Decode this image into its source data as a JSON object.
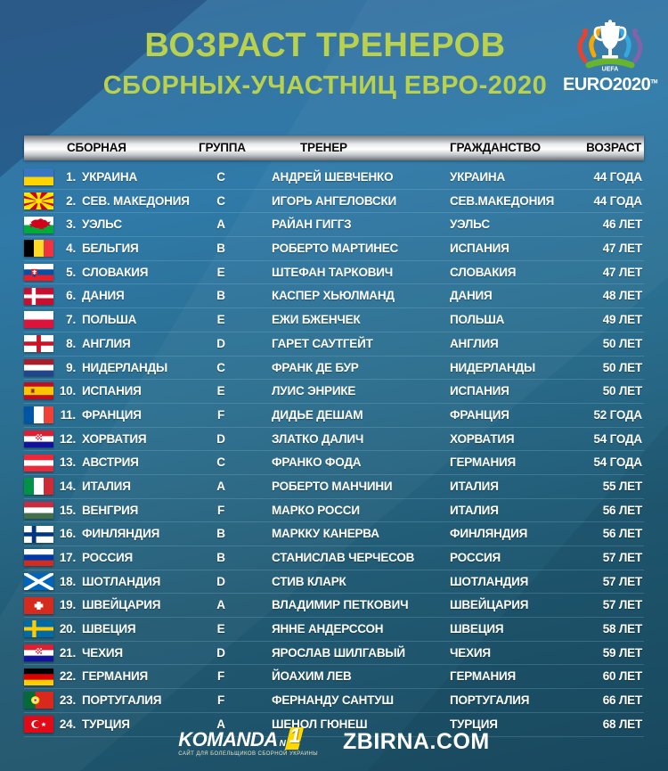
{
  "header": {
    "title_line1": "ВОЗРАСТ ТРЕНЕРОВ",
    "title_line2": "СБОРНЫХ-УЧАСТНИЦ ЕВРО-2020",
    "logo": {
      "uefa": "UEFA",
      "euro": "EURO",
      "year": "2020",
      "tm": "TM"
    }
  },
  "chart_data": {
    "type": "table",
    "title": "ВОЗРАСТ ТРЕНЕРОВ СБОРНЫХ-УЧАСТНИЦ ЕВРО-2020",
    "columns": [
      "СБОРНАЯ",
      "ГРУППА",
      "ТРЕНЕР",
      "ГРАЖДАНСТВО",
      "ВОЗРАСТ"
    ],
    "rows": [
      {
        "num": "1.",
        "team": "УКРАИНА",
        "flag": "ukraine",
        "group": "C",
        "coach": "АНДРЕЙ ШЕВЧЕНКО",
        "citizenship": "УКРАИНА",
        "age": "44 ГОДА"
      },
      {
        "num": "2.",
        "team": "СЕВ. МАКЕДОНИЯ",
        "flag": "north-macedonia",
        "group": "C",
        "coach": "ИГОРЬ АНГЕЛОВСКИ",
        "citizenship": "СЕВ.МАКЕДОНИЯ",
        "age": "44 ГОДА"
      },
      {
        "num": "3.",
        "team": "УЭЛЬС",
        "flag": "wales",
        "group": "A",
        "coach": "РАЙАН ГИГГЗ",
        "citizenship": "УЭЛЬС",
        "age": "46 ЛЕТ"
      },
      {
        "num": "4.",
        "team": "БЕЛЬГИЯ",
        "flag": "belgium",
        "group": "B",
        "coach": "РОБЕРТО МАРТИНЕС",
        "citizenship": "ИСПАНИЯ",
        "age": "47 ЛЕТ"
      },
      {
        "num": "5.",
        "team": "СЛОВАКИЯ",
        "flag": "slovakia",
        "group": "E",
        "coach": "ШТЕФАН ТАРКОВИЧ",
        "citizenship": "СЛОВАКИЯ",
        "age": "47 ЛЕТ"
      },
      {
        "num": "6.",
        "team": "ДАНИЯ",
        "flag": "denmark",
        "group": "B",
        "coach": "КАСПЕР ХЬЮЛМАНД",
        "citizenship": "ДАНИЯ",
        "age": "48 ЛЕТ"
      },
      {
        "num": "7.",
        "team": "ПОЛЬША",
        "flag": "poland",
        "group": "E",
        "coach": "ЕЖИ БЖЕНЧЕК",
        "citizenship": "ПОЛЬША",
        "age": "49 ЛЕТ"
      },
      {
        "num": "8.",
        "team": "АНГЛИЯ",
        "flag": "england",
        "group": "D",
        "coach": "ГАРЕТ САУТГЕЙТ",
        "citizenship": "АНГЛИЯ",
        "age": "50 ЛЕТ"
      },
      {
        "num": "9.",
        "team": "НИДЕРЛАНДЫ",
        "flag": "netherlands",
        "group": "C",
        "coach": "ФРАНК ДЕ БУР",
        "citizenship": "НИДЕРЛАНДЫ",
        "age": "50 ЛЕТ"
      },
      {
        "num": "10.",
        "team": "ИСПАНИЯ",
        "flag": "spain",
        "group": "E",
        "coach": "ЛУИС ЭНРИКЕ",
        "citizenship": "ИСПАНИЯ",
        "age": "50 ЛЕТ"
      },
      {
        "num": "11.",
        "team": "ФРАНЦИЯ",
        "flag": "france",
        "group": "F",
        "coach": "ДИДЬЕ ДЕШАМ",
        "citizenship": "ФРАНЦИЯ",
        "age": "52 ГОДА"
      },
      {
        "num": "12.",
        "team": "ХОРВАТИЯ",
        "flag": "croatia",
        "group": "D",
        "coach": "ЗЛАТКО ДАЛИЧ",
        "citizenship": "ХОРВАТИЯ",
        "age": "54 ГОДА"
      },
      {
        "num": "13.",
        "team": "АВСТРИЯ",
        "flag": "austria",
        "group": "C",
        "coach": "ФРАНКО ФОДА",
        "citizenship": "ГЕРМАНИЯ",
        "age": "54 ГОДА"
      },
      {
        "num": "14.",
        "team": "ИТАЛИЯ",
        "flag": "italy",
        "group": "A",
        "coach": "РОБЕРТО МАНЧИНИ",
        "citizenship": "ИТАЛИЯ",
        "age": "55 ЛЕТ"
      },
      {
        "num": "15.",
        "team": "ВЕНГРИЯ",
        "flag": "hungary",
        "group": "F",
        "coach": "МАРКО РОССИ",
        "citizenship": "ИТАЛИЯ",
        "age": "56 ЛЕТ"
      },
      {
        "num": "16.",
        "team": "ФИНЛЯНДИЯ",
        "flag": "finland",
        "group": "B",
        "coach": "МАРККУ КАНЕРВА",
        "citizenship": "ФИНЛЯНДИЯ",
        "age": "56 ЛЕТ"
      },
      {
        "num": "17.",
        "team": "РОССИЯ",
        "flag": "russia",
        "group": "B",
        "coach": "СТАНИСЛАВ ЧЕРЧЕСОВ",
        "citizenship": "РОССИЯ",
        "age": "57 ЛЕТ"
      },
      {
        "num": "18.",
        "team": "ШОТЛАНДИЯ",
        "flag": "scotland",
        "group": "D",
        "coach": "СТИВ КЛАРК",
        "citizenship": "ШОТЛАНДИЯ",
        "age": "57 ЛЕТ"
      },
      {
        "num": "19.",
        "team": "ШВЕЙЦАРИЯ",
        "flag": "switzerland",
        "group": "A",
        "coach": "ВЛАДИМИР ПЕТКОВИЧ",
        "citizenship": "ШВЕЙЦАРИЯ",
        "age": "57 ЛЕТ"
      },
      {
        "num": "20.",
        "team": "ШВЕЦИЯ",
        "flag": "sweden",
        "group": "E",
        "coach": "ЯННЕ АНДЕРССОН",
        "citizenship": "ШВЕЦИЯ",
        "age": "58 ЛЕТ"
      },
      {
        "num": "21.",
        "team": "ЧЕХИЯ",
        "flag": "croatia",
        "group": "D",
        "coach": "ЯРОСЛАВ ШИЛГАВЫЙ",
        "citizenship": "ЧЕХИЯ",
        "age": "59 ЛЕТ"
      },
      {
        "num": "22.",
        "team": "ГЕРМАНИЯ",
        "flag": "germany",
        "group": "F",
        "coach": "ЙОАХИМ ЛЕВ",
        "citizenship": "ГЕРМАНИЯ",
        "age": "60 ЛЕТ"
      },
      {
        "num": "23.",
        "team": "ПОРТУГАЛИЯ",
        "flag": "portugal",
        "group": "F",
        "coach": "ФЕРНАНДУ САНТУШ",
        "citizenship": "ПОРТУГАЛИЯ",
        "age": "66 ЛЕТ"
      },
      {
        "num": "24.",
        "team": "ТУРЦИЯ",
        "flag": "turkey",
        "group": "A",
        "coach": "ШЕНОЛ ГЮНЕШ",
        "citizenship": "ТУРЦИЯ",
        "age": "68 ЛЕТ"
      }
    ]
  },
  "footer": {
    "komanda": {
      "text": "KOMANDA",
      "sub": "N",
      "one": "1",
      "tagline": "САЙТ ДЛЯ БОЛЕЛЬЩИКОВ СБОРНОЙ УКРАИНЫ"
    },
    "site": "ZBIRNA.COM"
  },
  "colors": {
    "title_green": "#b9d14d",
    "background_top": "#3a71a0",
    "background_bottom": "#1b4d63",
    "header_bar_silver": "#e9ebed",
    "header_bar_text": "#0b0b0b",
    "row_text": "#ffffff",
    "accent_yellow": "#ffd800"
  }
}
